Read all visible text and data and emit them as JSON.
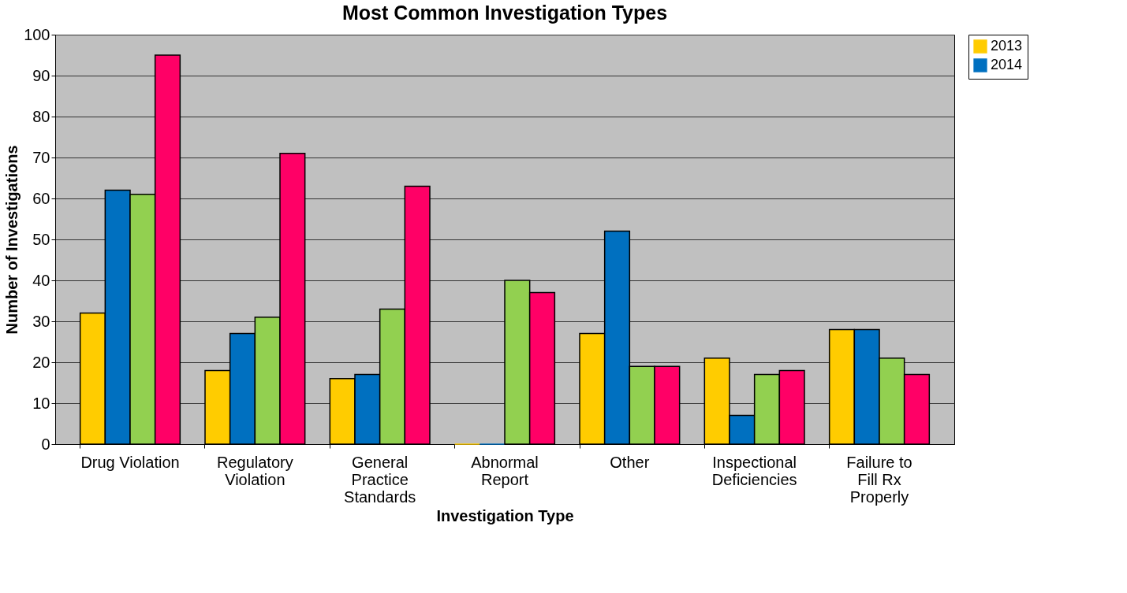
{
  "chart_data": {
    "type": "bar",
    "title": "Most Common Investigation Types",
    "xlabel": "Investigation Type",
    "ylabel": "Number of Investigations",
    "categories": [
      "Drug Violation",
      "Regulatory Violation",
      "General Practice Standards",
      "Abnormal Report",
      "Other",
      "Inspectional Deficiencies",
      "Failure to Fill Rx Properly"
    ],
    "series": [
      {
        "name": "2013",
        "color": "#ffcc00",
        "values": [
          32,
          18,
          16,
          0,
          27,
          21,
          28
        ]
      },
      {
        "name": "2014",
        "color": "#0070c0",
        "values": [
          62,
          27,
          17,
          0,
          52,
          7,
          28
        ]
      },
      {
        "color": "#92d050",
        "values": [
          61,
          31,
          33,
          40,
          19,
          17,
          21
        ]
      },
      {
        "color": "#ff0066",
        "values": [
          95,
          71,
          63,
          37,
          19,
          18,
          17
        ]
      }
    ],
    "ylim": [
      0,
      100
    ],
    "yticks": [
      0,
      10,
      20,
      30,
      40,
      50,
      60,
      70,
      80,
      90,
      100
    ],
    "grid": "y",
    "legend": "right"
  }
}
